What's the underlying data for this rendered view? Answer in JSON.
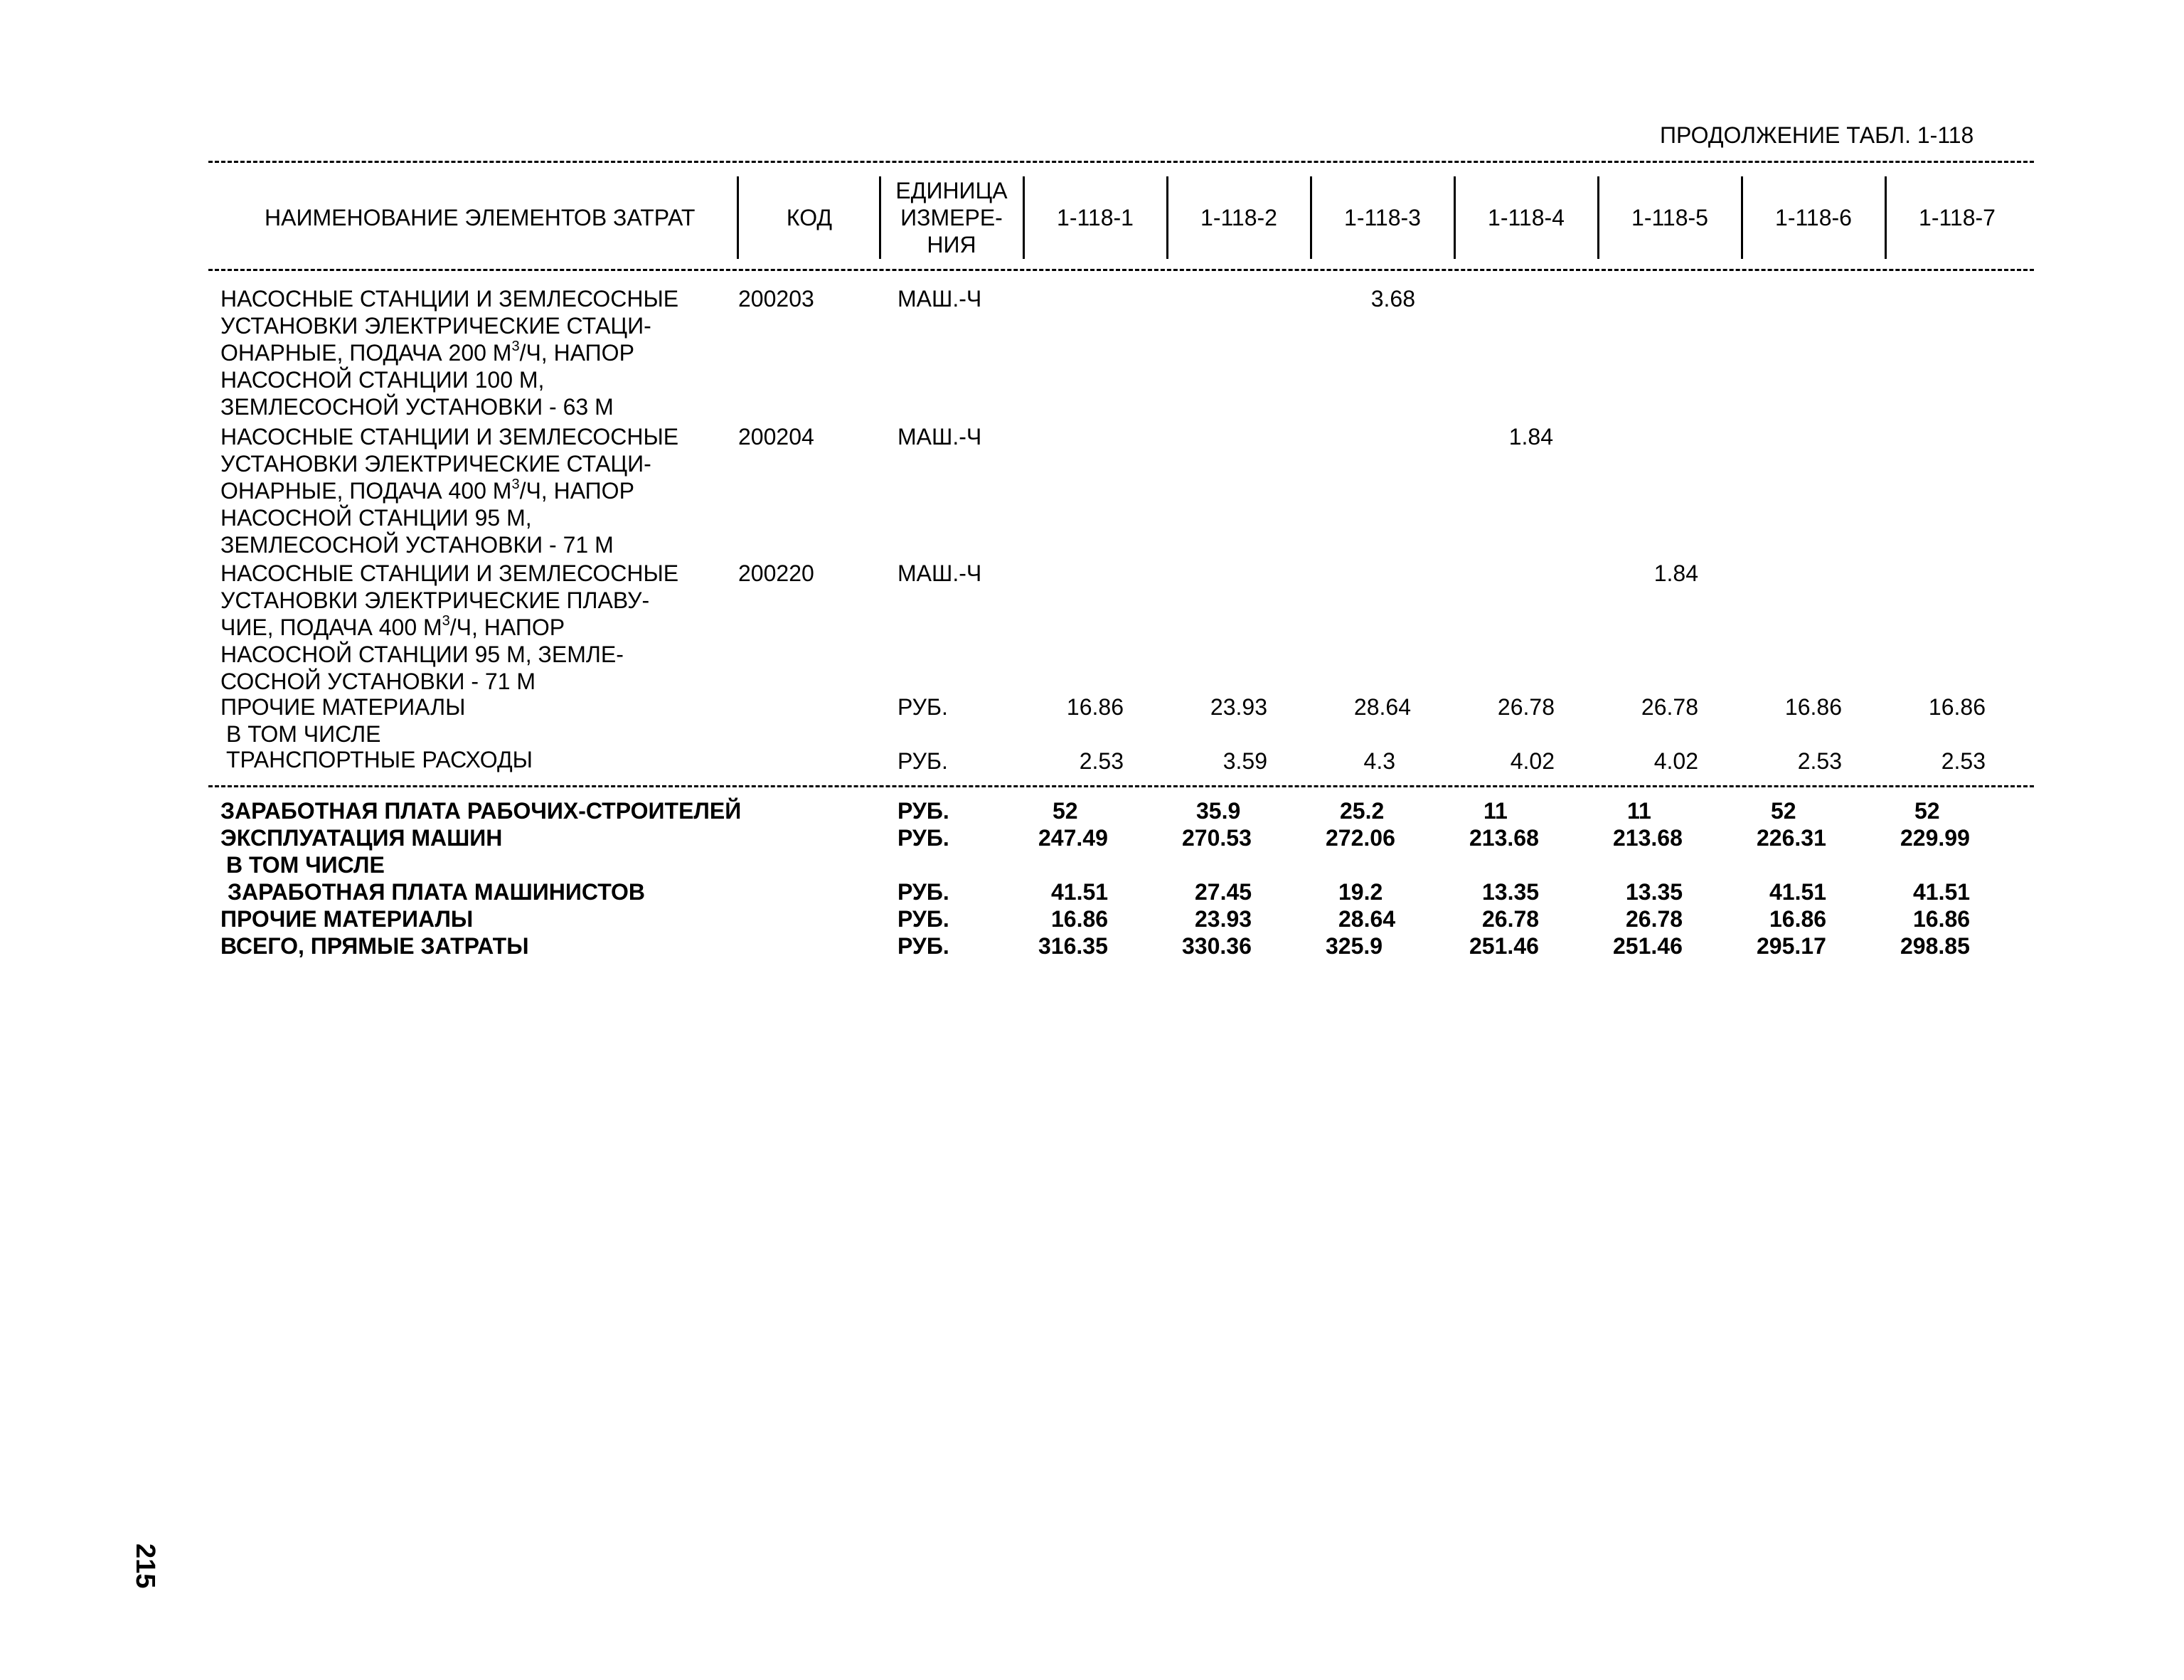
{
  "table_caption": "ПРОДОЛЖЕНИЕ ТАБЛ. 1-118",
  "headers": {
    "name": "НАИМЕНОВАНИЕ ЭЛЕМЕНТОВ ЗАТРАТ",
    "code": "КОД",
    "unit_line1": "ЕДИНИЦА",
    "unit_line2": "ИЗМЕРЕ-",
    "unit_line3": "НИЯ",
    "cols": [
      "1-118-1",
      "1-118-2",
      "1-118-3",
      "1-118-4",
      "1-118-5",
      "1-118-6",
      "1-118-7"
    ]
  },
  "rows": [
    {
      "name_lines": [
        "НАСОСНЫЕ СТАНЦИИ И ЗЕМЛЕСОСНЫЕ",
        "УСТАНОВКИ ЭЛЕКТРИЧЕСКИЕ СТАЦИ-",
        "ОНАРНЫЕ, ПОДАЧА 200 М",
        "НАСОСНОЙ СТАНЦИИ 100 М,",
        "ЗЕМЛЕСОСНОЙ УСТАНОВКИ - 63 М"
      ],
      "sup_after_line3": "3",
      "line3_tail": "/Ч, НАПОР",
      "code": "200203",
      "unit": "МАШ.-Ч",
      "values": [
        "",
        "",
        "3.68",
        "",
        "",
        "",
        ""
      ]
    },
    {
      "name_lines": [
        "НАСОСНЫЕ СТАНЦИИ И ЗЕМЛЕСОСНЫЕ",
        "УСТАНОВКИ ЭЛЕКТРИЧЕСКИЕ СТАЦИ-",
        "ОНАРНЫЕ, ПОДАЧА 400 М",
        "НАСОСНОЙ СТАНЦИИ 95 М,",
        "ЗЕМЛЕСОСНОЙ УСТАНОВКИ - 71 М"
      ],
      "sup_after_line3": "3",
      "line3_tail": "/Ч, НАПОР",
      "code": "200204",
      "unit": "МАШ.-Ч",
      "values": [
        "",
        "",
        "",
        "1.84",
        "",
        "",
        ""
      ]
    },
    {
      "name_lines": [
        "НАСОСНЫЕ СТАНЦИИ И ЗЕМЛЕСОСНЫЕ",
        "УСТАНОВКИ ЭЛЕКТРИЧЕСКИЕ ПЛАВУ-",
        "ЧИЕ, ПОДАЧА 400 М",
        "НАСОСНОЙ СТАНЦИИ 95 М, ЗЕМЛЕ-",
        "СОСНОЙ УСТАНОВКИ - 71 М"
      ],
      "sup_after_line3": "3",
      "line3_tail": "/Ч, НАПОР",
      "code": "200220",
      "unit": "МАШ.-Ч",
      "values": [
        "",
        "",
        "",
        "",
        "1.84",
        "",
        ""
      ]
    },
    {
      "name_lines": [
        "ПРОЧИЕ МАТЕРИАЛЫ"
      ],
      "code": "",
      "unit": "РУБ.",
      "values": [
        "16.86",
        "23.93",
        "28.64",
        "26.78",
        "26.78",
        "16.86",
        "16.86"
      ]
    },
    {
      "name_lines": [
        " В ТОМ ЧИСЛЕ"
      ],
      "code": "",
      "unit": "",
      "values": [
        "",
        "",
        "",
        "",
        "",
        "",
        ""
      ]
    },
    {
      "name_lines": [
        " ТРАНСПОРТНЫЕ РАСХОДЫ"
      ],
      "code": "",
      "unit": "РУБ.",
      "values": [
        "2.53",
        "3.59",
        "4.3",
        "4.02",
        "4.02",
        "2.53",
        "2.53"
      ]
    }
  ],
  "summary_rows": [
    {
      "name": "ЗАРАБОТНАЯ ПЛАТА РАБОЧИХ-СТРОИТЕЛЕЙ",
      "unit": "РУБ.",
      "values": [
        "52",
        "35.9",
        "25.2",
        "11",
        "11",
        "52",
        "52"
      ]
    },
    {
      "name": "ЭКСПЛУАТАЦИЯ МАШИН",
      "unit": "РУБ.",
      "values": [
        "247.49",
        "270.53",
        "272.06",
        "213.68",
        "213.68",
        "226.31",
        "229.99"
      ]
    },
    {
      "name": " В ТОМ ЧИСЛЕ",
      "unit": "",
      "values": [
        "",
        "",
        "",
        "",
        "",
        "",
        ""
      ]
    },
    {
      "name": " ЗАРАБОТНАЯ ПЛАТА МАШИНИСТОВ",
      "unit": "РУБ.",
      "values": [
        "41.51",
        "27.45",
        "19.2",
        "13.35",
        "13.35",
        "41.51",
        "41.51"
      ]
    },
    {
      "name": "ПРОЧИЕ МАТЕРИАЛЫ",
      "unit": "РУБ.",
      "values": [
        "16.86",
        "23.93",
        "28.64",
        "26.78",
        "26.78",
        "16.86",
        "16.86"
      ]
    },
    {
      "name": "ВСЕГО, ПРЯМЫЕ ЗАТРАТЫ",
      "unit": "РУБ.",
      "values": [
        "316.35",
        "330.36",
        "325.9",
        "251.46",
        "251.46",
        "295.17",
        "298.85"
      ]
    }
  ],
  "page_number": "215"
}
